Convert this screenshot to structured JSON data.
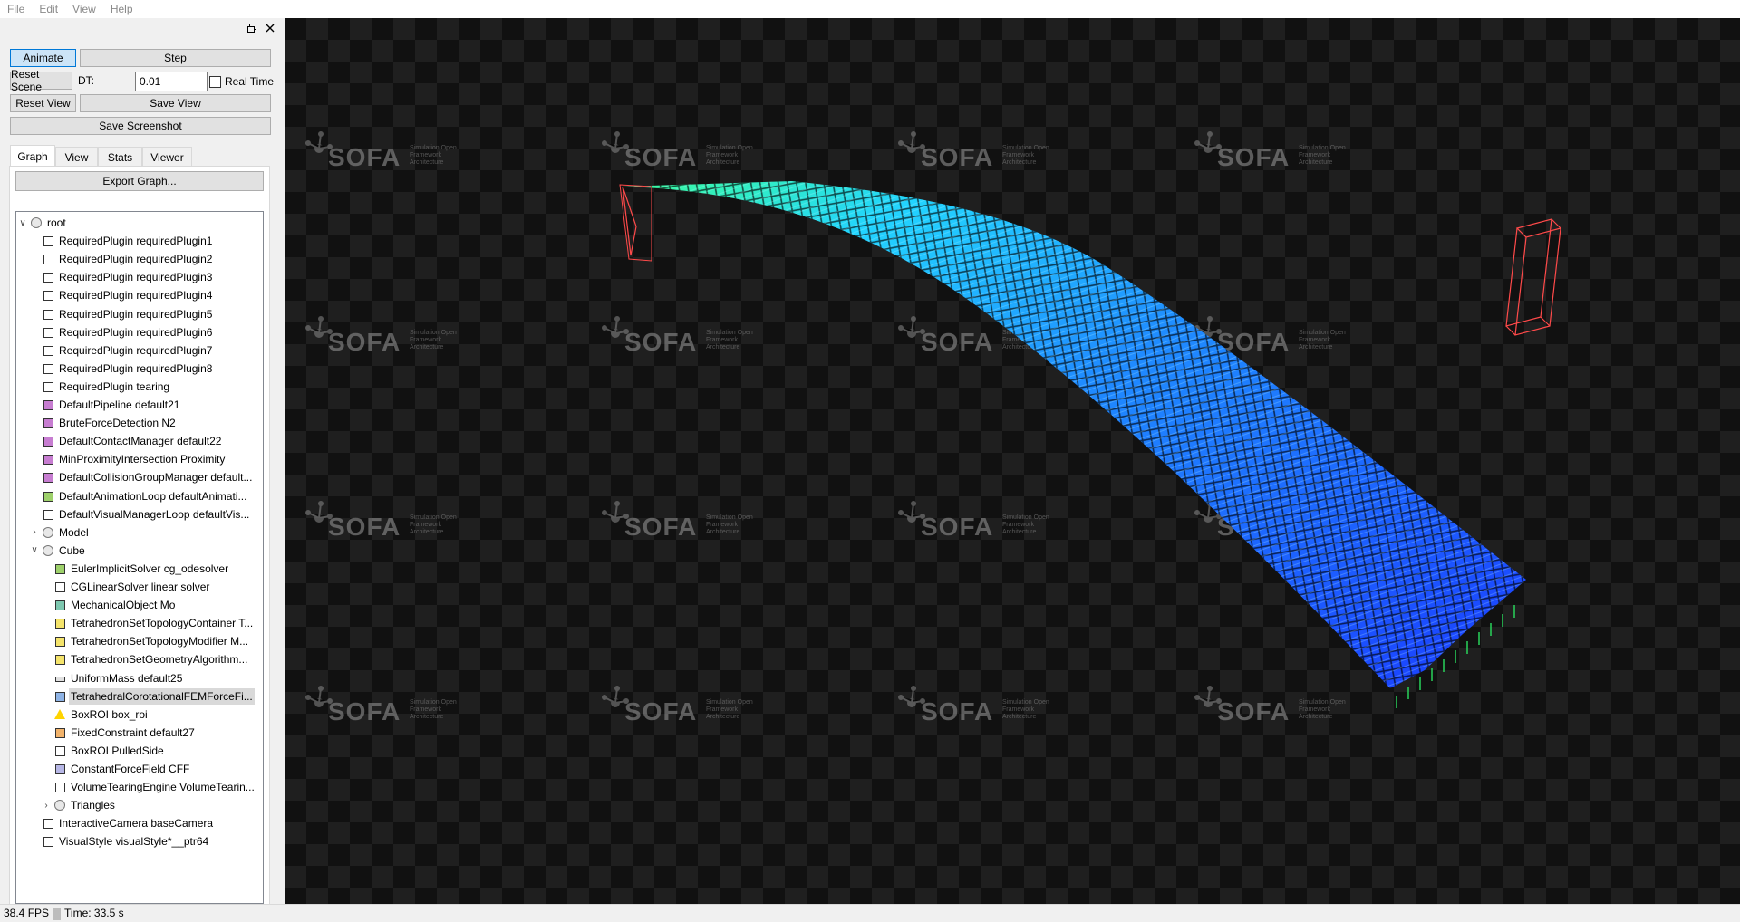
{
  "menu": {
    "file": "File",
    "edit": "Edit",
    "view": "View",
    "help": "Help"
  },
  "dock": {
    "float_icon": "restore-icon",
    "close_icon": "close-icon"
  },
  "controls": {
    "animate": "Animate",
    "step": "Step",
    "reset_scene": "Reset Scene",
    "dt_label": "DT:",
    "dt_value": "0.01",
    "real_time": "Real Time",
    "real_time_checked": false,
    "reset_view": "Reset View",
    "save_view": "Save View",
    "save_screenshot": "Save Screenshot"
  },
  "tabs": [
    {
      "label": "Graph",
      "selected": true
    },
    {
      "label": "View",
      "selected": false
    },
    {
      "label": "Stats",
      "selected": false
    },
    {
      "label": "Viewer",
      "selected": false
    }
  ],
  "graph": {
    "export_button": "Export Graph...",
    "tree": [
      {
        "label": "root",
        "level": 0,
        "type": "group",
        "expanded": true
      },
      {
        "label": "RequiredPlugin requiredPlugin1",
        "level": 1,
        "color": "#ffffff"
      },
      {
        "label": "RequiredPlugin requiredPlugin2",
        "level": 1,
        "color": "#ffffff"
      },
      {
        "label": "RequiredPlugin requiredPlugin3",
        "level": 1,
        "color": "#ffffff"
      },
      {
        "label": "RequiredPlugin requiredPlugin4",
        "level": 1,
        "color": "#ffffff"
      },
      {
        "label": "RequiredPlugin requiredPlugin5",
        "level": 1,
        "color": "#ffffff"
      },
      {
        "label": "RequiredPlugin requiredPlugin6",
        "level": 1,
        "color": "#ffffff"
      },
      {
        "label": "RequiredPlugin requiredPlugin7",
        "level": 1,
        "color": "#ffffff"
      },
      {
        "label": "RequiredPlugin requiredPlugin8",
        "level": 1,
        "color": "#ffffff"
      },
      {
        "label": "RequiredPlugin tearing",
        "level": 1,
        "color": "#ffffff"
      },
      {
        "label": "DefaultPipeline default21",
        "level": 1,
        "color": "#c77dd1"
      },
      {
        "label": "BruteForceDetection N2",
        "level": 1,
        "color": "#c77dd1"
      },
      {
        "label": "DefaultContactManager default22",
        "level": 1,
        "color": "#c77dd1"
      },
      {
        "label": "MinProximityIntersection Proximity",
        "level": 1,
        "color": "#c77dd1"
      },
      {
        "label": "DefaultCollisionGroupManager default...",
        "level": 1,
        "color": "#c77dd1"
      },
      {
        "label": "DefaultAnimationLoop defaultAnimati...",
        "level": 1,
        "color": "#9ed16b"
      },
      {
        "label": "DefaultVisualManagerLoop defaultVis...",
        "level": 1,
        "color": "#ffffff"
      },
      {
        "label": "Model",
        "level": 1,
        "type": "group",
        "expanded": false
      },
      {
        "label": "Cube",
        "level": 1,
        "type": "group",
        "expanded": true
      },
      {
        "label": "EulerImplicitSolver cg_odesolver",
        "level": 2,
        "color": "#9ed16b"
      },
      {
        "label": "CGLinearSolver linear solver",
        "level": 2,
        "color": "#ffffff"
      },
      {
        "label": "MechanicalObject Mo",
        "level": 2,
        "color": "#7ec8b0"
      },
      {
        "label": "TetrahedronSetTopologyContainer T...",
        "level": 2,
        "color": "#f5e46b"
      },
      {
        "label": "TetrahedronSetTopologyModifier M...",
        "level": 2,
        "color": "#f5e46b"
      },
      {
        "label": "TetrahedronSetGeometryAlgorithm...",
        "level": 2,
        "color": "#f5e46b"
      },
      {
        "label": "UniformMass default25",
        "level": 2,
        "color": "#e0e0e0",
        "type": "flat"
      },
      {
        "label": "TetrahedralCorotationalFEMForceFi...",
        "level": 2,
        "color": "#8fb4e6",
        "selected": true
      },
      {
        "label": "BoxROI box_roi",
        "level": 2,
        "type": "warn"
      },
      {
        "label": "FixedConstraint default27",
        "level": 2,
        "color": "#f2b36b"
      },
      {
        "label": "BoxROI PulledSide",
        "level": 2,
        "color": "#ffffff"
      },
      {
        "label": "ConstantForceField CFF",
        "level": 2,
        "color": "#b7b7e6"
      },
      {
        "label": "VolumeTearingEngine VolumeTearin...",
        "level": 2,
        "color": "#ffffff"
      },
      {
        "label": "Triangles",
        "level": 2,
        "type": "group",
        "expanded": false
      },
      {
        "label": "InteractiveCamera baseCamera",
        "level": 1,
        "color": "#ffffff"
      },
      {
        "label": "VisualStyle visualStyle*__ptr64",
        "level": 1,
        "color": "#ffffff"
      }
    ]
  },
  "viewer": {
    "watermark_logo": "SOFA",
    "watermark_sub": "Simulation Open Framework Architecture",
    "background": "#111111",
    "mesh_colors": [
      "#1a3cff",
      "#1f8cff",
      "#22d4ff",
      "#3cff9a"
    ],
    "bbox_color": "#ff4a4a"
  },
  "status": {
    "fps": "38.4 FPS",
    "time": "Time: 33.5 s"
  }
}
